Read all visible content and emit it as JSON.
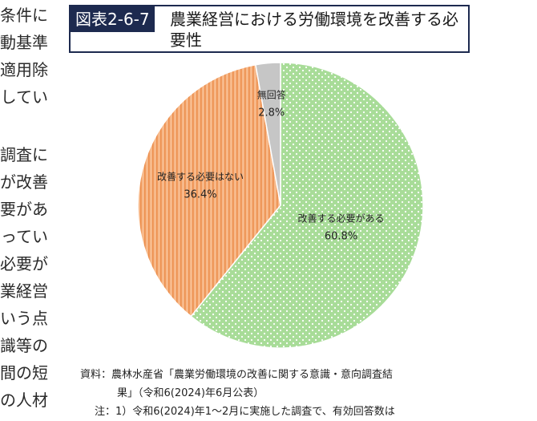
{
  "left_text": [
    "条件に",
    "動基準",
    "適用除",
    "してい",
    "",
    "調査に",
    "が改善",
    "要があ",
    "ってい",
    "必要が",
    "業経営",
    "いう点",
    "識等の",
    "間の短",
    "の人材"
  ],
  "figure": {
    "number": "図表2-6-7",
    "title": "農業経営における労働環境を改善する必要性"
  },
  "chart_data": {
    "type": "pie",
    "start": "top, clockwise",
    "slices": [
      {
        "label": "改善する必要がある",
        "value": 60.8,
        "value_label": "60.8%",
        "color": "#a8dc98",
        "pattern": "dots"
      },
      {
        "label": "改善する必要はない",
        "value": 36.4,
        "value_label": "36.4%",
        "color": "#f7b98a",
        "pattern": "vertical-stripes"
      },
      {
        "label": "無回答",
        "value": 2.8,
        "value_label": "2.8%",
        "color": "#c6c6c6",
        "pattern": "none"
      }
    ]
  },
  "source": {
    "prefix": "資料：",
    "line1": "農林水産省「農業労働環境の改善に関する意識・意向調査結",
    "line2": "果」（令和6(2024)年6月公表）"
  },
  "note": {
    "line1": "注：1）令和6(2024)年1～2月に実施した調査で、有効回答数は"
  }
}
